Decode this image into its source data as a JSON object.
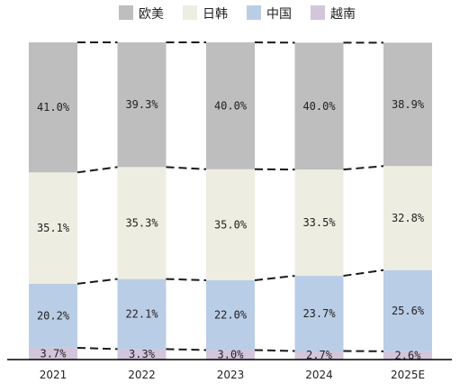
{
  "chart_data": {
    "type": "bar",
    "stacked": true,
    "percent_stacked": true,
    "categories": [
      "2021",
      "2022",
      "2023",
      "2024",
      "2025E"
    ],
    "series": [
      {
        "name": "越南",
        "color": "#D3C5DB",
        "values": [
          3.7,
          3.3,
          3.0,
          2.7,
          2.6
        ],
        "labels": [
          "3.7%",
          "3.3%",
          "3.0%",
          "2.7%",
          "2.6%"
        ]
      },
      {
        "name": "中国",
        "color": "#BACDE6",
        "values": [
          20.2,
          22.1,
          22.0,
          23.7,
          25.6
        ],
        "labels": [
          "20.2%",
          "22.1%",
          "22.0%",
          "23.7%",
          "25.6%"
        ]
      },
      {
        "name": "日韩",
        "color": "#EEEDE1",
        "values": [
          35.1,
          35.3,
          35.0,
          33.5,
          32.8
        ],
        "labels": [
          "35.1%",
          "35.3%",
          "35.0%",
          "33.5%",
          "32.8%"
        ]
      },
      {
        "name": "欧美",
        "color": "#BEBEBE",
        "values": [
          41.0,
          39.3,
          40.0,
          40.0,
          38.9
        ],
        "labels": [
          "41.0%",
          "39.3%",
          "40.0%",
          "40.0%",
          "38.9%"
        ]
      }
    ],
    "legend_order": [
      "欧美",
      "日韩",
      "中国",
      "越南"
    ],
    "legend_position": "top",
    "ylim": [
      0,
      100
    ],
    "y_axis_shown": false,
    "grid": false,
    "series_lines": "dashed"
  }
}
